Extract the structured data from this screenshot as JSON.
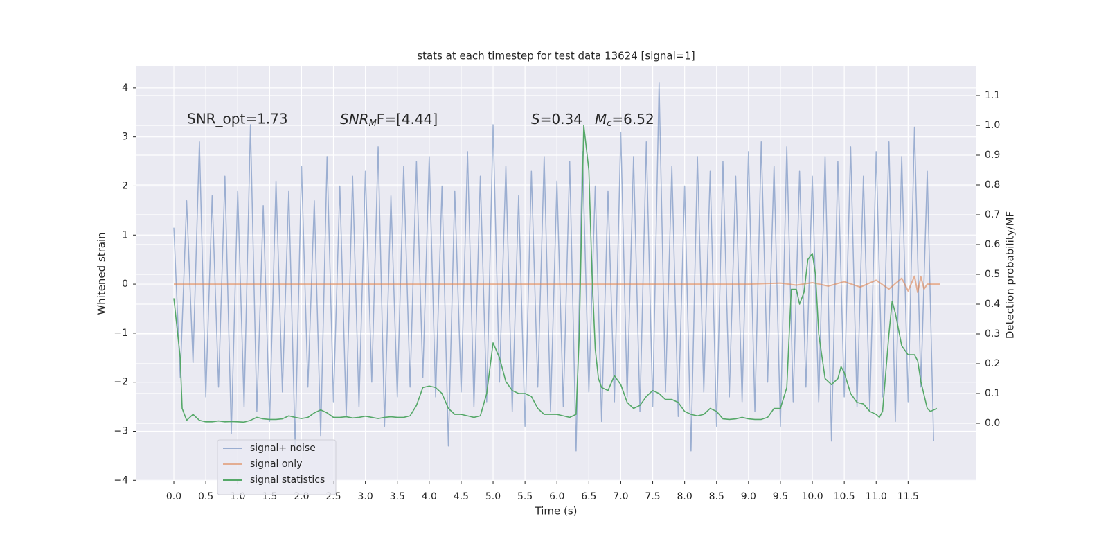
{
  "chart_data": {
    "type": "line",
    "title": "stats at each timestep for test data 13624 [signal=1]",
    "x_label": "Time (s)",
    "y_label": "Whitened strain",
    "y2_label": "Detection probability/MF",
    "annotations": [
      "SNR_opt=1.73",
      [
        "SNR",
        "M",
        "F=[4.44]"
      ],
      [
        "S",
        "=0.34"
      ],
      [
        "M",
        "c",
        "=6.52"
      ]
    ],
    "xlim": [
      -0.586,
      12.57
    ],
    "ylim": [
      -4.01,
      4.45
    ],
    "y2lim": [
      -0.193,
      1.2
    ],
    "xticks": [
      {
        "value": 0,
        "label": "0.0"
      },
      {
        "value": 0.5,
        "label": "0.5"
      },
      {
        "value": 1,
        "label": "1.0"
      },
      {
        "value": 1.5,
        "label": "1.5"
      },
      {
        "value": 2,
        "label": "2.0"
      },
      {
        "value": 2.5,
        "label": "2.5"
      },
      {
        "value": 3,
        "label": "3.0"
      },
      {
        "value": 3.5,
        "label": "3.5"
      },
      {
        "value": 4,
        "label": "4.0"
      },
      {
        "value": 4.5,
        "label": "4.5"
      },
      {
        "value": 5,
        "label": "5.0"
      },
      {
        "value": 5.5,
        "label": "5.5"
      },
      {
        "value": 6,
        "label": "6.0"
      },
      {
        "value": 6.5,
        "label": "6.5"
      },
      {
        "value": 7,
        "label": "7.0"
      },
      {
        "value": 7.5,
        "label": "7.5"
      },
      {
        "value": 8,
        "label": "8.0"
      },
      {
        "value": 8.5,
        "label": "8.5"
      },
      {
        "value": 9,
        "label": "9.0"
      },
      {
        "value": 9.5,
        "label": "9.5"
      },
      {
        "value": 10,
        "label": "10.0"
      },
      {
        "value": 10.5,
        "label": "10.5"
      },
      {
        "value": 11,
        "label": "11.0"
      },
      {
        "value": 11.5,
        "label": "11.5"
      }
    ],
    "yticks": [
      {
        "value": -4,
        "label": "−4"
      },
      {
        "value": -3,
        "label": "−3"
      },
      {
        "value": -2,
        "label": "−2"
      },
      {
        "value": -1,
        "label": "−1"
      },
      0,
      1,
      2,
      3,
      4
    ],
    "y2ticks": [
      {
        "value": 0,
        "label": "0.0"
      },
      {
        "value": 0.1,
        "label": "0.1"
      },
      {
        "value": 0.2,
        "label": "0.2"
      },
      {
        "value": 0.3,
        "label": "0.3"
      },
      {
        "value": 0.4,
        "label": "0.4"
      },
      {
        "value": 0.5,
        "label": "0.5"
      },
      {
        "value": 0.6,
        "label": "0.6"
      },
      {
        "value": 0.7,
        "label": "0.7"
      },
      {
        "value": 0.8,
        "label": "0.8"
      },
      {
        "value": 0.9,
        "label": "0.9"
      },
      {
        "value": 1,
        "label": "1.0"
      },
      {
        "value": 1.1,
        "label": "1.1"
      }
    ],
    "grid": true,
    "legend": "lower left",
    "series": [
      {
        "name": "signal+ noise",
        "color": "#4c72b0",
        "x": [
          0,
          0.1,
          0.2,
          0.3,
          0.4,
          0.5,
          0.6,
          0.7,
          0.8,
          0.9,
          1,
          1.1,
          1.2,
          1.3,
          1.4,
          1.5,
          1.6,
          1.7,
          1.8,
          1.9,
          2,
          2.1,
          2.2,
          2.3,
          2.4,
          2.5,
          2.6,
          2.7,
          2.8,
          2.9,
          3,
          3.1,
          3.2,
          3.3,
          3.4,
          3.5,
          3.6,
          3.7,
          3.8,
          3.9,
          4,
          4.1,
          4.2,
          4.3,
          4.4,
          4.5,
          4.6,
          4.7,
          4.8,
          4.9,
          5,
          5.1,
          5.2,
          5.3,
          5.4,
          5.5,
          5.6,
          5.7,
          5.8,
          5.9,
          6,
          6.1,
          6.2,
          6.3,
          6.4,
          6.5,
          6.6,
          6.7,
          6.8,
          6.9,
          7,
          7.1,
          7.2,
          7.3,
          7.4,
          7.5,
          7.6,
          7.7,
          7.8,
          7.9,
          8,
          8.1,
          8.2,
          8.3,
          8.4,
          8.5,
          8.6,
          8.7,
          8.8,
          8.9,
          9,
          9.1,
          9.2,
          9.3,
          9.4,
          9.5,
          9.6,
          9.7,
          9.8,
          9.9,
          10,
          10.1,
          10.2,
          10.3,
          10.4,
          10.5,
          10.6,
          10.7,
          10.8,
          10.9,
          11,
          11.1,
          11.2,
          11.3,
          11.4,
          11.5,
          11.6,
          11.7,
          11.8,
          11.9
        ],
        "values": [
          1.15,
          -1.9,
          1.7,
          -1.6,
          2.9,
          -2.3,
          1.8,
          -2.1,
          2.2,
          -3.05,
          1.9,
          -2.5,
          3.25,
          -2.6,
          1.6,
          -2.8,
          2.1,
          -2.2,
          1.9,
          -3.3,
          2.4,
          -2.1,
          1.7,
          -3.1,
          2.6,
          -2.4,
          2.0,
          -2.7,
          2.2,
          -2.5,
          2.3,
          -2.0,
          2.8,
          -2.9,
          1.8,
          -2.3,
          2.4,
          -2.1,
          2.5,
          -1.9,
          2.6,
          -2.3,
          2.0,
          -3.3,
          1.9,
          -2.2,
          2.7,
          -2.5,
          2.2,
          -2.4,
          3.25,
          -2.0,
          2.4,
          -2.6,
          1.8,
          -2.9,
          2.3,
          -2.1,
          2.6,
          -2.6,
          2.1,
          -2.5,
          2.5,
          -3.4,
          2.7,
          -2.2,
          2.0,
          -2.8,
          1.9,
          -2.4,
          3.1,
          -2.3,
          2.6,
          -2.6,
          2.9,
          -2.5,
          4.1,
          -2.2,
          2.4,
          -2.7,
          2.0,
          -3.4,
          2.6,
          -2.2,
          2.3,
          -2.9,
          2.5,
          -2.3,
          2.2,
          -2.4,
          2.7,
          -2.6,
          2.9,
          -2.0,
          2.4,
          -2.9,
          2.8,
          -2.4,
          2.3,
          -2.1,
          2.2,
          -2.4,
          2.6,
          -3.2,
          2.5,
          -2.3,
          2.8,
          -2.5,
          2.2,
          -2.6,
          2.7,
          -2.3,
          2.9,
          -2.8,
          2.6,
          -2.4,
          3.2,
          -2.1,
          2.3,
          -3.2
        ]
      },
      {
        "name": "signal only",
        "color": "#dd8452",
        "x": [
          0,
          1,
          2,
          3,
          4,
          5,
          6,
          7,
          8,
          9,
          9.5,
          9.75,
          10,
          10.25,
          10.5,
          10.75,
          11,
          11.2,
          11.4,
          11.5,
          11.6,
          11.65,
          11.7,
          11.75,
          11.8,
          12
        ],
        "values": [
          0,
          0,
          0,
          0,
          0,
          0,
          0,
          0,
          0,
          0,
          0.02,
          -0.02,
          0.03,
          -0.04,
          0.05,
          -0.06,
          0.08,
          -0.1,
          0.12,
          -0.14,
          0.16,
          -0.17,
          0.15,
          -0.1,
          0,
          0
        ]
      },
      {
        "name": "signal statistics",
        "color": "#55a868",
        "axis": "y2",
        "x": [
          0,
          0.1,
          0.13,
          0.2,
          0.3,
          0.4,
          0.5,
          0.6,
          0.7,
          0.8,
          0.9,
          1,
          1.1,
          1.2,
          1.3,
          1.4,
          1.5,
          1.6,
          1.7,
          1.8,
          1.9,
          2,
          2.1,
          2.2,
          2.3,
          2.4,
          2.5,
          2.6,
          2.7,
          2.8,
          2.9,
          3,
          3.1,
          3.2,
          3.3,
          3.4,
          3.5,
          3.6,
          3.7,
          3.8,
          3.9,
          4,
          4.1,
          4.2,
          4.3,
          4.4,
          4.5,
          4.6,
          4.7,
          4.8,
          4.9,
          5,
          5.1,
          5.2,
          5.3,
          5.4,
          5.5,
          5.6,
          5.7,
          5.8,
          5.9,
          6,
          6.1,
          6.2,
          6.3,
          6.35,
          6.42,
          6.5,
          6.55,
          6.6,
          6.65,
          6.7,
          6.8,
          6.9,
          7,
          7.1,
          7.2,
          7.3,
          7.4,
          7.5,
          7.6,
          7.7,
          7.8,
          7.9,
          8,
          8.1,
          8.2,
          8.3,
          8.4,
          8.5,
          8.6,
          8.7,
          8.8,
          8.9,
          9,
          9.1,
          9.2,
          9.3,
          9.4,
          9.5,
          9.6,
          9.67,
          9.75,
          9.8,
          9.87,
          9.93,
          10,
          10.05,
          10.1,
          10.2,
          10.3,
          10.4,
          10.45,
          10.5,
          10.6,
          10.7,
          10.8,
          10.9,
          11,
          11.05,
          11.1,
          11.2,
          11.25,
          11.3,
          11.4,
          11.5,
          11.6,
          11.65,
          11.7,
          11.8,
          11.85,
          11.95
        ],
        "values": [
          0.42,
          0.22,
          0.05,
          0.01,
          0.03,
          0.01,
          0.005,
          0.005,
          0.008,
          0.005,
          0.006,
          0.005,
          0.004,
          0.01,
          0.02,
          0.015,
          0.013,
          0.013,
          0.015,
          0.025,
          0.02,
          0.016,
          0.02,
          0.035,
          0.045,
          0.035,
          0.02,
          0.02,
          0.022,
          0.018,
          0.02,
          0.024,
          0.02,
          0.016,
          0.02,
          0.022,
          0.02,
          0.02,
          0.025,
          0.06,
          0.12,
          0.125,
          0.12,
          0.1,
          0.05,
          0.03,
          0.03,
          0.025,
          0.02,
          0.025,
          0.1,
          0.27,
          0.22,
          0.14,
          0.11,
          0.1,
          0.1,
          0.09,
          0.05,
          0.03,
          0.03,
          0.03,
          0.025,
          0.02,
          0.03,
          0.3,
          1.0,
          0.85,
          0.5,
          0.25,
          0.15,
          0.12,
          0.11,
          0.16,
          0.13,
          0.07,
          0.05,
          0.06,
          0.09,
          0.11,
          0.1,
          0.08,
          0.08,
          0.07,
          0.04,
          0.03,
          0.025,
          0.03,
          0.05,
          0.04,
          0.015,
          0.013,
          0.015,
          0.02,
          0.015,
          0.013,
          0.013,
          0.02,
          0.05,
          0.05,
          0.12,
          0.45,
          0.45,
          0.4,
          0.44,
          0.55,
          0.57,
          0.5,
          0.3,
          0.15,
          0.13,
          0.15,
          0.19,
          0.17,
          0.1,
          0.07,
          0.065,
          0.04,
          0.03,
          0.02,
          0.04,
          0.3,
          0.41,
          0.37,
          0.26,
          0.23,
          0.23,
          0.21,
          0.14,
          0.05,
          0.04,
          0.05
        ]
      }
    ]
  }
}
